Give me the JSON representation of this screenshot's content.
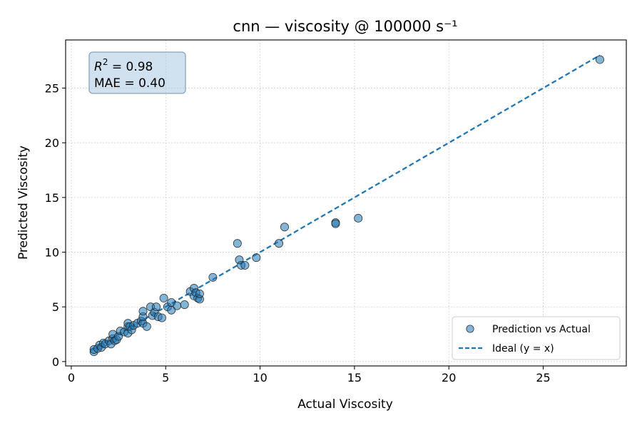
{
  "chart_data": {
    "type": "scatter",
    "title": "cnn — viscosity @ 100000 s⁻¹",
    "xlabel": "Actual Viscosity",
    "ylabel": "Predicted Viscosity",
    "xlim": [
      -0.3,
      29.4
    ],
    "ylim": [
      -0.4,
      29.4
    ],
    "xticks": [
      0,
      5,
      10,
      15,
      20,
      25
    ],
    "yticks": [
      0,
      5,
      10,
      15,
      20,
      25
    ],
    "grid": true,
    "legend_position": "lower-right",
    "stats": {
      "r2_prefix": "R",
      "r2_sup": "2",
      "r2_value": " = 0.98",
      "mae": "MAE = 0.40"
    },
    "series": [
      {
        "name": "Prediction vs Actual",
        "kind": "scatter",
        "color": "#1f77b4",
        "points": [
          [
            1.2,
            0.9
          ],
          [
            1.2,
            1.1
          ],
          [
            1.4,
            1.2
          ],
          [
            1.5,
            1.5
          ],
          [
            1.6,
            1.3
          ],
          [
            1.7,
            1.7
          ],
          [
            1.8,
            1.6
          ],
          [
            2.0,
            1.9
          ],
          [
            2.1,
            1.6
          ],
          [
            2.2,
            2.1
          ],
          [
            2.2,
            2.5
          ],
          [
            2.3,
            1.9
          ],
          [
            2.4,
            2.0
          ],
          [
            2.5,
            2.3
          ],
          [
            2.6,
            2.8
          ],
          [
            2.8,
            2.7
          ],
          [
            3.0,
            2.6
          ],
          [
            3.0,
            3.2
          ],
          [
            3.0,
            3.5
          ],
          [
            3.1,
            3.2
          ],
          [
            3.2,
            2.9
          ],
          [
            3.3,
            3.3
          ],
          [
            3.5,
            3.5
          ],
          [
            3.7,
            3.7
          ],
          [
            3.8,
            3.5
          ],
          [
            3.8,
            4.1
          ],
          [
            3.8,
            4.6
          ],
          [
            4.0,
            3.2
          ],
          [
            4.2,
            5.0
          ],
          [
            4.3,
            4.2
          ],
          [
            4.4,
            4.5
          ],
          [
            4.5,
            5.0
          ],
          [
            4.6,
            4.1
          ],
          [
            4.8,
            4.0
          ],
          [
            4.9,
            5.8
          ],
          [
            5.1,
            5.0
          ],
          [
            5.3,
            4.7
          ],
          [
            5.3,
            5.4
          ],
          [
            5.6,
            5.1
          ],
          [
            6.0,
            5.2
          ],
          [
            6.3,
            6.4
          ],
          [
            6.5,
            6.0
          ],
          [
            6.5,
            6.7
          ],
          [
            6.6,
            6.3
          ],
          [
            6.7,
            5.8
          ],
          [
            6.8,
            5.7
          ],
          [
            6.8,
            6.2
          ],
          [
            7.5,
            7.7
          ],
          [
            8.8,
            10.8
          ],
          [
            8.9,
            9.3
          ],
          [
            9.0,
            8.8
          ],
          [
            9.2,
            8.8
          ],
          [
            9.8,
            9.5
          ],
          [
            11.0,
            10.8
          ],
          [
            11.3,
            12.3
          ],
          [
            14.0,
            12.7
          ],
          [
            14.0,
            12.6
          ],
          [
            15.2,
            13.1
          ],
          [
            28.0,
            27.6
          ]
        ]
      },
      {
        "name": "Ideal (y = x)",
        "kind": "line",
        "color": "#1f77b4",
        "dash": true,
        "points": [
          [
            1.0,
            1.0
          ],
          [
            28.0,
            28.0
          ]
        ]
      }
    ]
  }
}
